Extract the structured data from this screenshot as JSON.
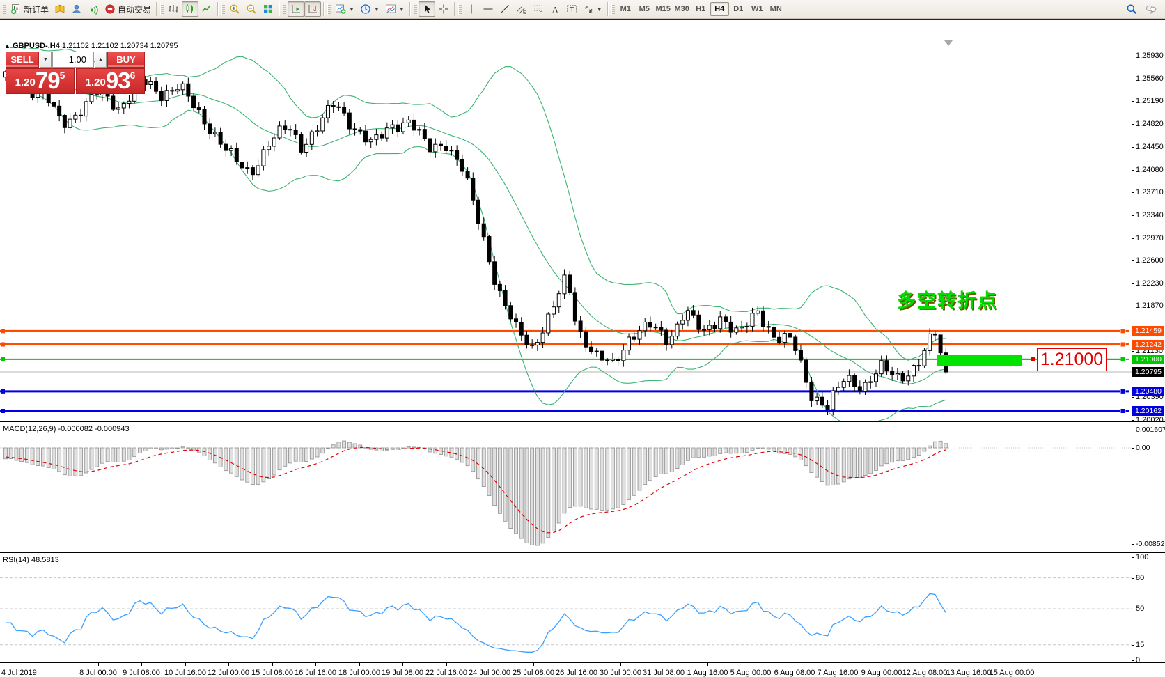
{
  "toolbar": {
    "new_order_label": "新订单",
    "autotrading_label": "自动交易",
    "groups": [
      {
        "items": [
          {
            "name": "new-order-button",
            "icon": "neworder",
            "label_key": "new_order_label"
          },
          {
            "name": "history-center-button",
            "icon": "book"
          },
          {
            "name": "metaeditor-button",
            "icon": "editor"
          },
          {
            "name": "signals-button",
            "icon": "signals"
          },
          {
            "name": "autotrading-button",
            "icon": "autotrading",
            "label_key": "autotrading_label"
          }
        ]
      },
      {
        "items": [
          {
            "name": "bar-chart-button",
            "icon": "barchart"
          },
          {
            "name": "candlestick-chart-button",
            "icon": "candles",
            "pressed": true
          },
          {
            "name": "line-chart-button",
            "icon": "linechart"
          }
        ]
      },
      {
        "items": [
          {
            "name": "zoom-in-button",
            "icon": "zoomin"
          },
          {
            "name": "zoom-out-button",
            "icon": "zoomout"
          },
          {
            "name": "tile-windows-button",
            "icon": "tile"
          }
        ]
      },
      {
        "items": [
          {
            "name": "auto-scroll-button",
            "icon": "autoscroll",
            "pressed": true
          },
          {
            "name": "chart-shift-button",
            "icon": "chartshift",
            "pressed": true
          }
        ]
      },
      {
        "items": [
          {
            "name": "new-chart-button",
            "icon": "newchart",
            "dropdown": true
          },
          {
            "name": "periods-button",
            "icon": "clock",
            "dropdown": true
          },
          {
            "name": "indicators-button",
            "icon": "indicators",
            "dropdown": true
          }
        ]
      },
      {
        "items": [
          {
            "name": "cursor-button",
            "icon": "cursor",
            "pressed": true
          },
          {
            "name": "crosshair-button",
            "icon": "crosshair"
          }
        ]
      },
      {
        "items": [
          {
            "name": "vertical-line-button",
            "icon": "vline"
          },
          {
            "name": "horizontal-line-button",
            "icon": "hline"
          },
          {
            "name": "trendline-button",
            "icon": "tline"
          },
          {
            "name": "equidistant-channel-button",
            "icon": "channel"
          },
          {
            "name": "fibonacci-button",
            "icon": "fibo"
          },
          {
            "name": "text-button",
            "icon": "textA"
          },
          {
            "name": "text-label-button",
            "icon": "textlabel"
          },
          {
            "name": "arrows-button",
            "icon": "shapes",
            "dropdown": true
          }
        ]
      }
    ],
    "timeframes": [
      "M1",
      "M5",
      "M15",
      "M30",
      "H1",
      "H4",
      "D1",
      "W1",
      "MN"
    ],
    "active_timeframe": "H4",
    "right_buttons": [
      {
        "name": "search-button",
        "icon": "search"
      },
      {
        "name": "chat-button",
        "icon": "chat"
      }
    ]
  },
  "chart": {
    "header": {
      "symbol": "GBPUSD-,H4",
      "open": "1.21102",
      "high": "1.21102",
      "low": "1.20734",
      "close": "1.20795"
    },
    "y_axis": {
      "plain_ticks": [
        "1.25930",
        "1.25560",
        "1.25190",
        "1.24820",
        "1.24450",
        "1.24080",
        "1.23710",
        "1.23340",
        "1.22970",
        "1.22600",
        "1.22230",
        "1.21870",
        "1.21130",
        "1.20390",
        "1.20020"
      ],
      "highlighted_ticks": [
        {
          "text": "1.21459",
          "bg": "#ff4a00"
        },
        {
          "text": "1.21242",
          "bg": "#ff4a00"
        },
        {
          "text": "1.21000",
          "bg": "#00c800"
        },
        {
          "text": "1.20795",
          "bg": "#000000"
        },
        {
          "text": "1.20480",
          "bg": "#0000e0"
        },
        {
          "text": "1.20162",
          "bg": "#0000e0"
        }
      ]
    },
    "x_axis": {
      "labels": [
        "4 Jul 2019",
        "8 Jul 00:00",
        "9 Jul 08:00",
        "10 Jul 16:00",
        "12 Jul 00:00",
        "15 Jul 08:00",
        "16 Jul 16:00",
        "18 Jul 00:00",
        "19 Jul 08:00",
        "22 Jul 16:00",
        "24 Jul 00:00",
        "25 Jul 08:00",
        "26 Jul 16:00",
        "30 Jul 00:00",
        "31 Jul 08:00",
        "1 Aug 16:00",
        "5 Aug 00:00",
        "6 Aug 08:00",
        "7 Aug 16:00",
        "9 Aug 00:00",
        "12 Aug 08:00",
        "13 Aug 16:00",
        "15 Aug 00:00"
      ]
    },
    "levels": [
      {
        "price": 1.21459,
        "color": "#ff4a00",
        "width": 3
      },
      {
        "price": 1.21242,
        "color": "#ff4a00",
        "width": 3
      },
      {
        "price": 1.21,
        "color": "#00c800",
        "width": 2
      },
      {
        "price": 1.2048,
        "color": "#0000e0",
        "width": 3
      },
      {
        "price": 1.20162,
        "color": "#0000e0",
        "width": 3
      }
    ],
    "bid_line": {
      "price": 1.20795,
      "color": "#b4b4b4"
    }
  },
  "trade_panel": {
    "sell_label": "SELL",
    "buy_label": "BUY",
    "volume": "1.00",
    "sell": {
      "small": "1.20",
      "big": "79",
      "sup": "5"
    },
    "buy": {
      "small": "1.20",
      "big": "93",
      "sup": "6"
    }
  },
  "annotations": {
    "pivot_text": "多空转折点",
    "level_label": "1.21000"
  },
  "indicators": {
    "macd": {
      "label": "MACD(12,26,9) -0.000082 -0.000943",
      "axis": [
        "0.001607",
        "0.00",
        "-0.008522"
      ],
      "axis_values": [
        0.001607,
        0,
        -0.008522
      ]
    },
    "rsi": {
      "label": "RSI(14) 48.5813",
      "axis": [
        "100",
        "80",
        "50",
        "15",
        "0"
      ],
      "axis_values": [
        100,
        80,
        50,
        15,
        0
      ],
      "level_lines": [
        80,
        50,
        15
      ]
    }
  },
  "chart_data": {
    "type": "candlestick",
    "symbol": "GBPUSD",
    "timeframe": "H4",
    "current_bid": 1.20795,
    "spike_high": 1.21459,
    "bar_count": 176,
    "price_waypoints": [
      [
        0.0,
        1.2562
      ],
      [
        0.02,
        1.2545
      ],
      [
        0.045,
        1.2521
      ],
      [
        0.06,
        1.2482
      ],
      [
        0.075,
        1.2498
      ],
      [
        0.1,
        1.2536
      ],
      [
        0.12,
        1.2508
      ],
      [
        0.145,
        1.2552
      ],
      [
        0.165,
        1.253
      ],
      [
        0.185,
        1.2546
      ],
      [
        0.205,
        1.2498
      ],
      [
        0.225,
        1.2462
      ],
      [
        0.245,
        1.242
      ],
      [
        0.26,
        1.24
      ],
      [
        0.28,
        1.2452
      ],
      [
        0.3,
        1.2478
      ],
      [
        0.315,
        1.2445
      ],
      [
        0.335,
        1.2484
      ],
      [
        0.35,
        1.2516
      ],
      [
        0.37,
        1.2478
      ],
      [
        0.39,
        1.2448
      ],
      [
        0.41,
        1.248
      ],
      [
        0.43,
        1.2486
      ],
      [
        0.45,
        1.2442
      ],
      [
        0.468,
        1.2452
      ],
      [
        0.487,
        1.2405
      ],
      [
        0.505,
        1.2316
      ],
      [
        0.523,
        1.2215
      ],
      [
        0.542,
        1.215
      ],
      [
        0.56,
        1.212
      ],
      [
        0.578,
        1.2168
      ],
      [
        0.597,
        1.2235
      ],
      [
        0.608,
        1.215
      ],
      [
        0.628,
        1.2105
      ],
      [
        0.646,
        1.209
      ],
      [
        0.665,
        1.214
      ],
      [
        0.685,
        1.2155
      ],
      [
        0.705,
        1.213
      ],
      [
        0.723,
        1.2182
      ],
      [
        0.742,
        1.214
      ],
      [
        0.76,
        1.217
      ],
      [
        0.78,
        1.214
      ],
      [
        0.8,
        1.2178
      ],
      [
        0.818,
        1.2136
      ],
      [
        0.837,
        1.213
      ],
      [
        0.856,
        1.2045
      ],
      [
        0.874,
        1.2022
      ],
      [
        0.893,
        1.207
      ],
      [
        0.912,
        1.2055
      ],
      [
        0.931,
        1.2086
      ],
      [
        0.95,
        1.207
      ],
      [
        0.97,
        1.209
      ],
      [
        0.988,
        1.2145
      ],
      [
        1.0,
        1.20795
      ]
    ],
    "bollinger": {
      "period": 20,
      "deviation": 2,
      "color": "#3cb371"
    },
    "macd": {
      "fast": 12,
      "slow": 26,
      "signal": 9,
      "histogram_color": "#e0e0e0",
      "signal_color": "#e00000"
    },
    "rsi": {
      "period": 14,
      "color": "#3aa0ff"
    }
  }
}
